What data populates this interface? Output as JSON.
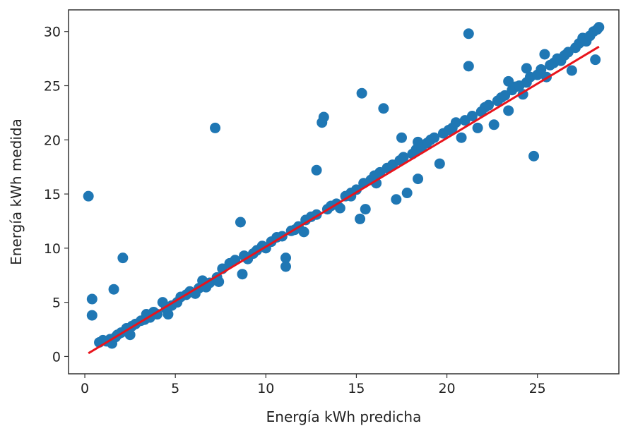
{
  "chart_data": {
    "type": "scatter",
    "title": "",
    "xlabel": "Energía kWh predicha",
    "ylabel": "Energía kWh medida",
    "xlim": [
      -0.9,
      29.5
    ],
    "ylim": [
      -1.6,
      32.0
    ],
    "xticks": [
      0,
      5,
      10,
      15,
      20,
      25
    ],
    "yticks": [
      0,
      5,
      10,
      15,
      20,
      25,
      30
    ],
    "grid": false,
    "legend": "none",
    "colors": {
      "points": "#1f77b4",
      "fit_line": "#e8141c",
      "frame": "#333333"
    },
    "series": [
      {
        "kind": "points",
        "x": [
          0.2,
          0.4,
          0.4,
          0.8,
          1.0,
          1.2,
          1.4,
          1.5,
          1.6,
          1.7,
          1.8,
          2.0,
          2.1,
          2.3,
          2.3,
          2.5,
          2.6,
          2.8,
          3.1,
          3.3,
          3.4,
          3.6,
          3.8,
          4.0,
          4.3,
          4.5,
          4.6,
          4.8,
          5.1,
          5.3,
          5.6,
          5.8,
          6.1,
          6.3,
          6.5,
          6.7,
          6.9,
          7.2,
          7.3,
          7.4,
          7.6,
          8.0,
          8.3,
          8.6,
          8.7,
          8.8,
          9.0,
          9.3,
          9.5,
          9.8,
          10.0,
          10.3,
          10.6,
          10.9,
          11.1,
          11.1,
          11.4,
          11.8,
          12.1,
          12.2,
          12.5,
          12.8,
          13.1,
          13.2,
          13.4,
          13.6,
          13.9,
          14.1,
          14.4,
          14.7,
          15.0,
          15.2,
          15.3,
          15.4,
          15.5,
          15.8,
          16.0,
          16.1,
          16.3,
          16.5,
          16.7,
          17.0,
          17.2,
          17.4,
          17.6,
          17.8,
          18.1,
          18.3,
          18.4,
          18.6,
          18.9,
          19.1,
          19.3,
          19.6,
          19.8,
          20.1,
          20.3,
          20.5,
          20.8,
          21.0,
          21.2,
          21.4,
          21.7,
          21.9,
          22.1,
          22.3,
          22.6,
          22.8,
          23.0,
          23.2,
          23.4,
          23.6,
          23.8,
          24.0,
          24.2,
          24.4,
          24.6,
          24.8,
          25.0,
          25.2,
          25.4,
          25.5,
          25.7,
          25.9,
          26.1,
          26.3,
          26.5,
          26.7,
          26.9,
          27.1,
          27.3,
          27.5,
          27.7,
          27.9,
          28.1,
          28.2,
          28.3,
          28.4,
          21.2,
          23.4,
          24.4,
          17.5,
          18.4,
          14.7,
          12.8,
          11.6
        ],
        "y": [
          14.8,
          5.3,
          3.8,
          1.3,
          1.5,
          1.4,
          1.6,
          1.2,
          6.2,
          1.8,
          2.0,
          2.2,
          9.1,
          2.4,
          2.6,
          2.0,
          2.8,
          3.0,
          3.3,
          3.4,
          3.9,
          3.6,
          4.1,
          3.9,
          5.0,
          4.4,
          3.9,
          4.7,
          5.0,
          5.5,
          5.7,
          6.0,
          5.8,
          6.3,
          7.0,
          6.4,
          6.8,
          21.1,
          7.3,
          6.9,
          8.1,
          8.6,
          8.9,
          12.4,
          7.6,
          9.3,
          9.0,
          9.5,
          9.8,
          10.2,
          10.0,
          10.6,
          11.0,
          11.1,
          8.3,
          9.1,
          11.6,
          12.0,
          11.5,
          12.6,
          12.9,
          13.1,
          21.6,
          22.1,
          13.6,
          13.9,
          14.1,
          13.7,
          14.8,
          15.1,
          15.4,
          12.7,
          24.3,
          16.0,
          13.6,
          16.3,
          16.7,
          16.0,
          17.0,
          22.9,
          17.4,
          17.7,
          14.5,
          18.1,
          18.4,
          15.1,
          18.7,
          19.1,
          16.4,
          19.3,
          19.7,
          20.0,
          20.2,
          17.8,
          20.6,
          20.9,
          21.1,
          21.6,
          20.2,
          21.8,
          29.8,
          22.2,
          21.1,
          22.6,
          23.0,
          23.2,
          21.4,
          23.6,
          23.9,
          24.1,
          22.7,
          24.6,
          24.9,
          25.0,
          24.2,
          25.3,
          25.8,
          18.5,
          26.0,
          26.5,
          27.9,
          25.8,
          26.9,
          27.1,
          27.5,
          27.3,
          27.8,
          28.1,
          26.4,
          28.5,
          28.9,
          29.4,
          29.1,
          29.6,
          30.0,
          27.4,
          30.2,
          30.4,
          26.8,
          25.4,
          26.6,
          20.2,
          19.8,
          14.8,
          17.2,
          11.7
        ]
      },
      {
        "kind": "line",
        "x": [
          0.2,
          28.4
        ],
        "y": [
          0.3,
          28.6
        ]
      }
    ]
  }
}
